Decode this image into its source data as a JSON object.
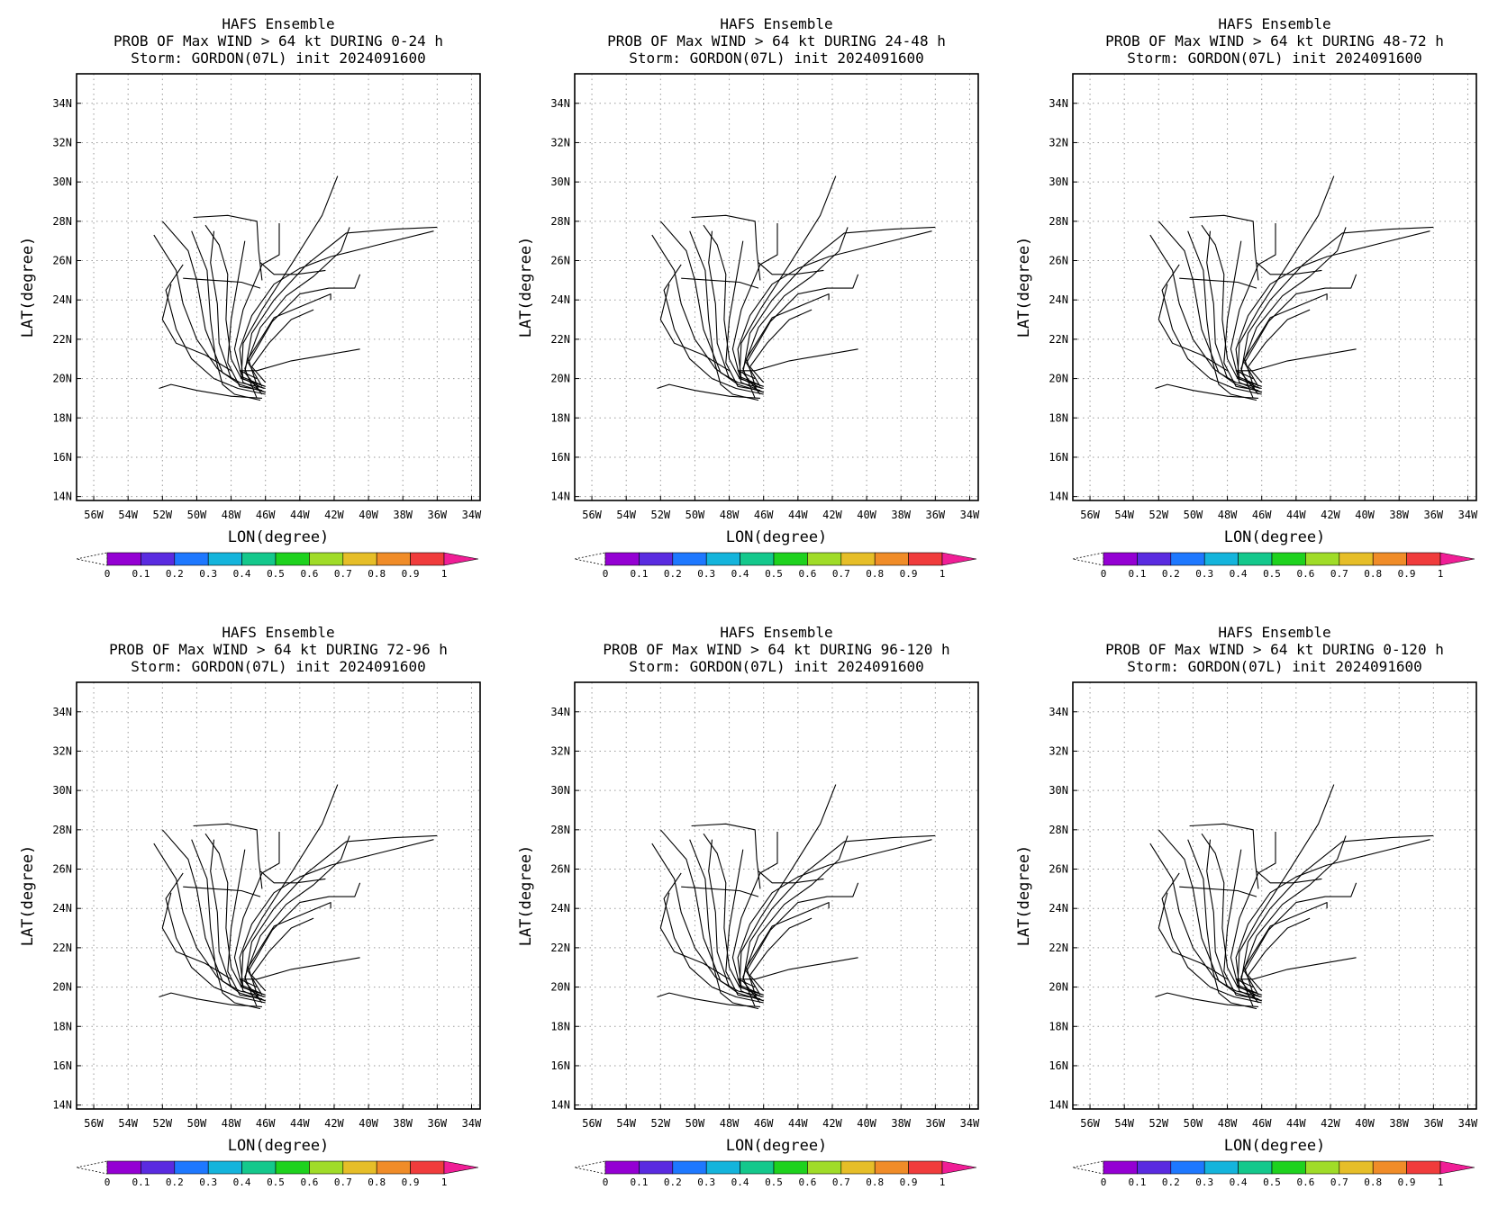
{
  "colors": {
    "background": "#ffffff",
    "frame": "#000000",
    "grid": "#9a9a9a",
    "track": "#000000",
    "colorbar": [
      "#ffffff",
      "#9400d3",
      "#5a2be0",
      "#1e78ff",
      "#14b4dc",
      "#14c88c",
      "#1ed21e",
      "#a0dc28",
      "#e6be28",
      "#f08c28",
      "#f03c3c",
      "#f01e96"
    ]
  },
  "panels": [
    {
      "title1": "HAFS Ensemble",
      "title2": "PROB OF Max WIND > 64 kt DURING  0-24 h",
      "title3": "Storm: GORDON(07L) init 2024091600"
    },
    {
      "title1": "HAFS Ensemble",
      "title2": "PROB OF Max WIND > 64 kt DURING 24-48 h",
      "title3": "Storm: GORDON(07L) init 2024091600"
    },
    {
      "title1": "HAFS Ensemble",
      "title2": "PROB OF Max WIND > 64 kt DURING 48-72 h",
      "title3": "Storm: GORDON(07L) init 2024091600"
    },
    {
      "title1": "HAFS Ensemble",
      "title2": "PROB OF Max WIND > 64 kt DURING 72-96 h",
      "title3": "Storm: GORDON(07L) init 2024091600"
    },
    {
      "title1": "HAFS Ensemble",
      "title2": "PROB OF Max WIND > 64 kt DURING 96-120 h",
      "title3": "Storm: GORDON(07L) init 2024091600"
    },
    {
      "title1": "HAFS Ensemble",
      "title2": "PROB OF Max WIND > 64 kt DURING 0-120 h",
      "title3": "Storm: GORDON(07L) init 2024091600"
    }
  ],
  "axes": {
    "xlabel": "LON(degree)",
    "ylabel": "LAT(degree)",
    "x_ticks": [
      "56W",
      "54W",
      "52W",
      "50W",
      "48W",
      "46W",
      "44W",
      "42W",
      "40W",
      "38W",
      "36W",
      "34W"
    ],
    "y_ticks": [
      "14N",
      "16N",
      "18N",
      "20N",
      "22N",
      "24N",
      "26N",
      "28N",
      "30N",
      "32N",
      "34N"
    ]
  },
  "colorbar": {
    "labels": [
      "0",
      "0.1",
      "0.2",
      "0.3",
      "0.4",
      "0.5",
      "0.6",
      "0.7",
      "0.8",
      "0.9",
      "1"
    ]
  },
  "chart_data": {
    "type": "line",
    "description_units": "longitude (negative = W), latitude (N)",
    "xlim": [
      -57,
      -33.5
    ],
    "ylim": [
      13.8,
      35.5
    ],
    "grid": true,
    "series": [
      {
        "values": [
          [
            -46,
            19.5
          ],
          [
            -47.5,
            19.8
          ],
          [
            -48.5,
            20.3
          ],
          [
            -49.5,
            22.5
          ],
          [
            -50,
            25
          ],
          [
            -50.5,
            26.5
          ],
          [
            -52,
            28
          ]
        ]
      },
      {
        "values": [
          [
            -46,
            19.3
          ],
          [
            -47.5,
            19.7
          ],
          [
            -48.8,
            20.5
          ],
          [
            -50,
            22
          ],
          [
            -50.8,
            23.8
          ],
          [
            -51.2,
            25.5
          ],
          [
            -52.5,
            27.3
          ]
        ]
      },
      {
        "values": [
          [
            -46,
            19.2
          ],
          [
            -47.6,
            19.5
          ],
          [
            -49,
            20
          ],
          [
            -50.3,
            21
          ],
          [
            -51.2,
            22.5
          ],
          [
            -51.8,
            24.5
          ],
          [
            -50.8,
            25.8
          ]
        ]
      },
      {
        "values": [
          [
            -46.2,
            19
          ],
          [
            -48,
            19.1
          ],
          [
            -50,
            19.4
          ],
          [
            -51.5,
            19.7
          ],
          [
            -52.2,
            19.5
          ]
        ]
      },
      {
        "values": [
          [
            -46.3,
            18.9
          ],
          [
            -47.8,
            19.2
          ],
          [
            -48.5,
            19.7
          ],
          [
            -48.9,
            21
          ],
          [
            -49.2,
            23
          ],
          [
            -49.4,
            25.5
          ],
          [
            -50.3,
            27.5
          ]
        ]
      },
      {
        "values": [
          [
            -46,
            19.6
          ],
          [
            -47.4,
            20
          ],
          [
            -48,
            21
          ],
          [
            -48.3,
            23
          ],
          [
            -48.2,
            25.3
          ],
          [
            -48.7,
            26.8
          ],
          [
            -49.5,
            27.8
          ]
        ]
      },
      {
        "values": [
          [
            -46.2,
            19.4
          ],
          [
            -47.5,
            19.6
          ],
          [
            -48.2,
            20.8
          ],
          [
            -48,
            23
          ],
          [
            -47.5,
            25.5
          ],
          [
            -47.2,
            27
          ]
        ]
      },
      {
        "values": [
          [
            -46,
            19.3
          ],
          [
            -47.3,
            19.8
          ],
          [
            -47.8,
            21.5
          ],
          [
            -47.3,
            23.5
          ],
          [
            -46.2,
            25.8
          ],
          [
            -45.2,
            26.3
          ],
          [
            -45.2,
            27.9
          ]
        ]
      },
      {
        "values": [
          [
            -46.1,
            19.5
          ],
          [
            -47.3,
            20
          ],
          [
            -47.5,
            21.5
          ],
          [
            -46.8,
            23.2
          ],
          [
            -45.5,
            24.8
          ],
          [
            -44,
            25.6
          ],
          [
            -42.2,
            26.2
          ],
          [
            -39,
            26.9
          ],
          [
            -36.2,
            27.5
          ]
        ]
      },
      {
        "values": [
          [
            -46.3,
            19.7
          ],
          [
            -47.4,
            20.1
          ],
          [
            -47.3,
            21.8
          ],
          [
            -46.2,
            23.5
          ],
          [
            -44.5,
            25.8
          ],
          [
            -42.7,
            28.3
          ],
          [
            -41.8,
            30.3
          ]
        ]
      },
      {
        "values": [
          [
            -46.2,
            19.2
          ],
          [
            -47.2,
            20.3
          ],
          [
            -46.8,
            22.3
          ],
          [
            -45.5,
            24
          ],
          [
            -43.6,
            25.8
          ],
          [
            -41.3,
            27.4
          ],
          [
            -38.5,
            27.6
          ],
          [
            -36,
            27.7
          ]
        ]
      },
      {
        "values": [
          [
            -46.5,
            19
          ],
          [
            -47.2,
            20.5
          ],
          [
            -46.3,
            22.6
          ],
          [
            -44.8,
            24.2
          ],
          [
            -43.2,
            25.2
          ],
          [
            -41.6,
            26.5
          ],
          [
            -41.1,
            27.7
          ]
        ]
      },
      {
        "values": [
          [
            -46.2,
            19.6
          ],
          [
            -47,
            20.8
          ],
          [
            -45.6,
            22.9
          ],
          [
            -44,
            24.3
          ],
          [
            -42.3,
            24.6
          ],
          [
            -40.8,
            24.6
          ],
          [
            -40.5,
            25.3
          ]
        ]
      },
      {
        "values": [
          [
            -46.4,
            19.4
          ],
          [
            -47,
            21
          ],
          [
            -45.5,
            23.1
          ],
          [
            -43.3,
            23.9
          ],
          [
            -42.2,
            24.3
          ],
          [
            -42.2,
            24
          ]
        ]
      },
      {
        "values": [
          [
            -46,
            19.8
          ],
          [
            -46.8,
            20.6
          ],
          [
            -45.8,
            21.8
          ],
          [
            -44.5,
            23
          ],
          [
            -43.2,
            23.5
          ]
        ]
      },
      {
        "values": [
          [
            -46.5,
            20
          ],
          [
            -47.5,
            20.4
          ],
          [
            -46.5,
            20.4
          ],
          [
            -44.5,
            20.9
          ],
          [
            -42.5,
            21.2
          ],
          [
            -40.5,
            21.5
          ]
        ]
      },
      {
        "values": [
          [
            -48,
            20.4
          ],
          [
            -49.5,
            21.2
          ],
          [
            -51.2,
            21.8
          ],
          [
            -52,
            23
          ],
          [
            -51.5,
            24.8
          ]
        ]
      },
      {
        "values": [
          [
            -48,
            20
          ],
          [
            -48.7,
            21.8
          ],
          [
            -48.8,
            23.8
          ],
          [
            -49.2,
            25.9
          ],
          [
            -49,
            27.5
          ]
        ]
      },
      {
        "values": [
          [
            -50.8,
            25.1
          ],
          [
            -49,
            25
          ],
          [
            -47.4,
            24.9
          ],
          [
            -46.3,
            24.6
          ]
        ]
      },
      {
        "values": [
          [
            -50.2,
            28.2
          ],
          [
            -48.2,
            28.3
          ],
          [
            -46.5,
            28
          ],
          [
            -46.4,
            26.5
          ],
          [
            -46.2,
            25
          ]
        ]
      },
      {
        "values": [
          [
            -46.3,
            25.9
          ],
          [
            -45.5,
            25.3
          ],
          [
            -44.2,
            25.3
          ],
          [
            -42.5,
            25.5
          ]
        ]
      }
    ]
  }
}
